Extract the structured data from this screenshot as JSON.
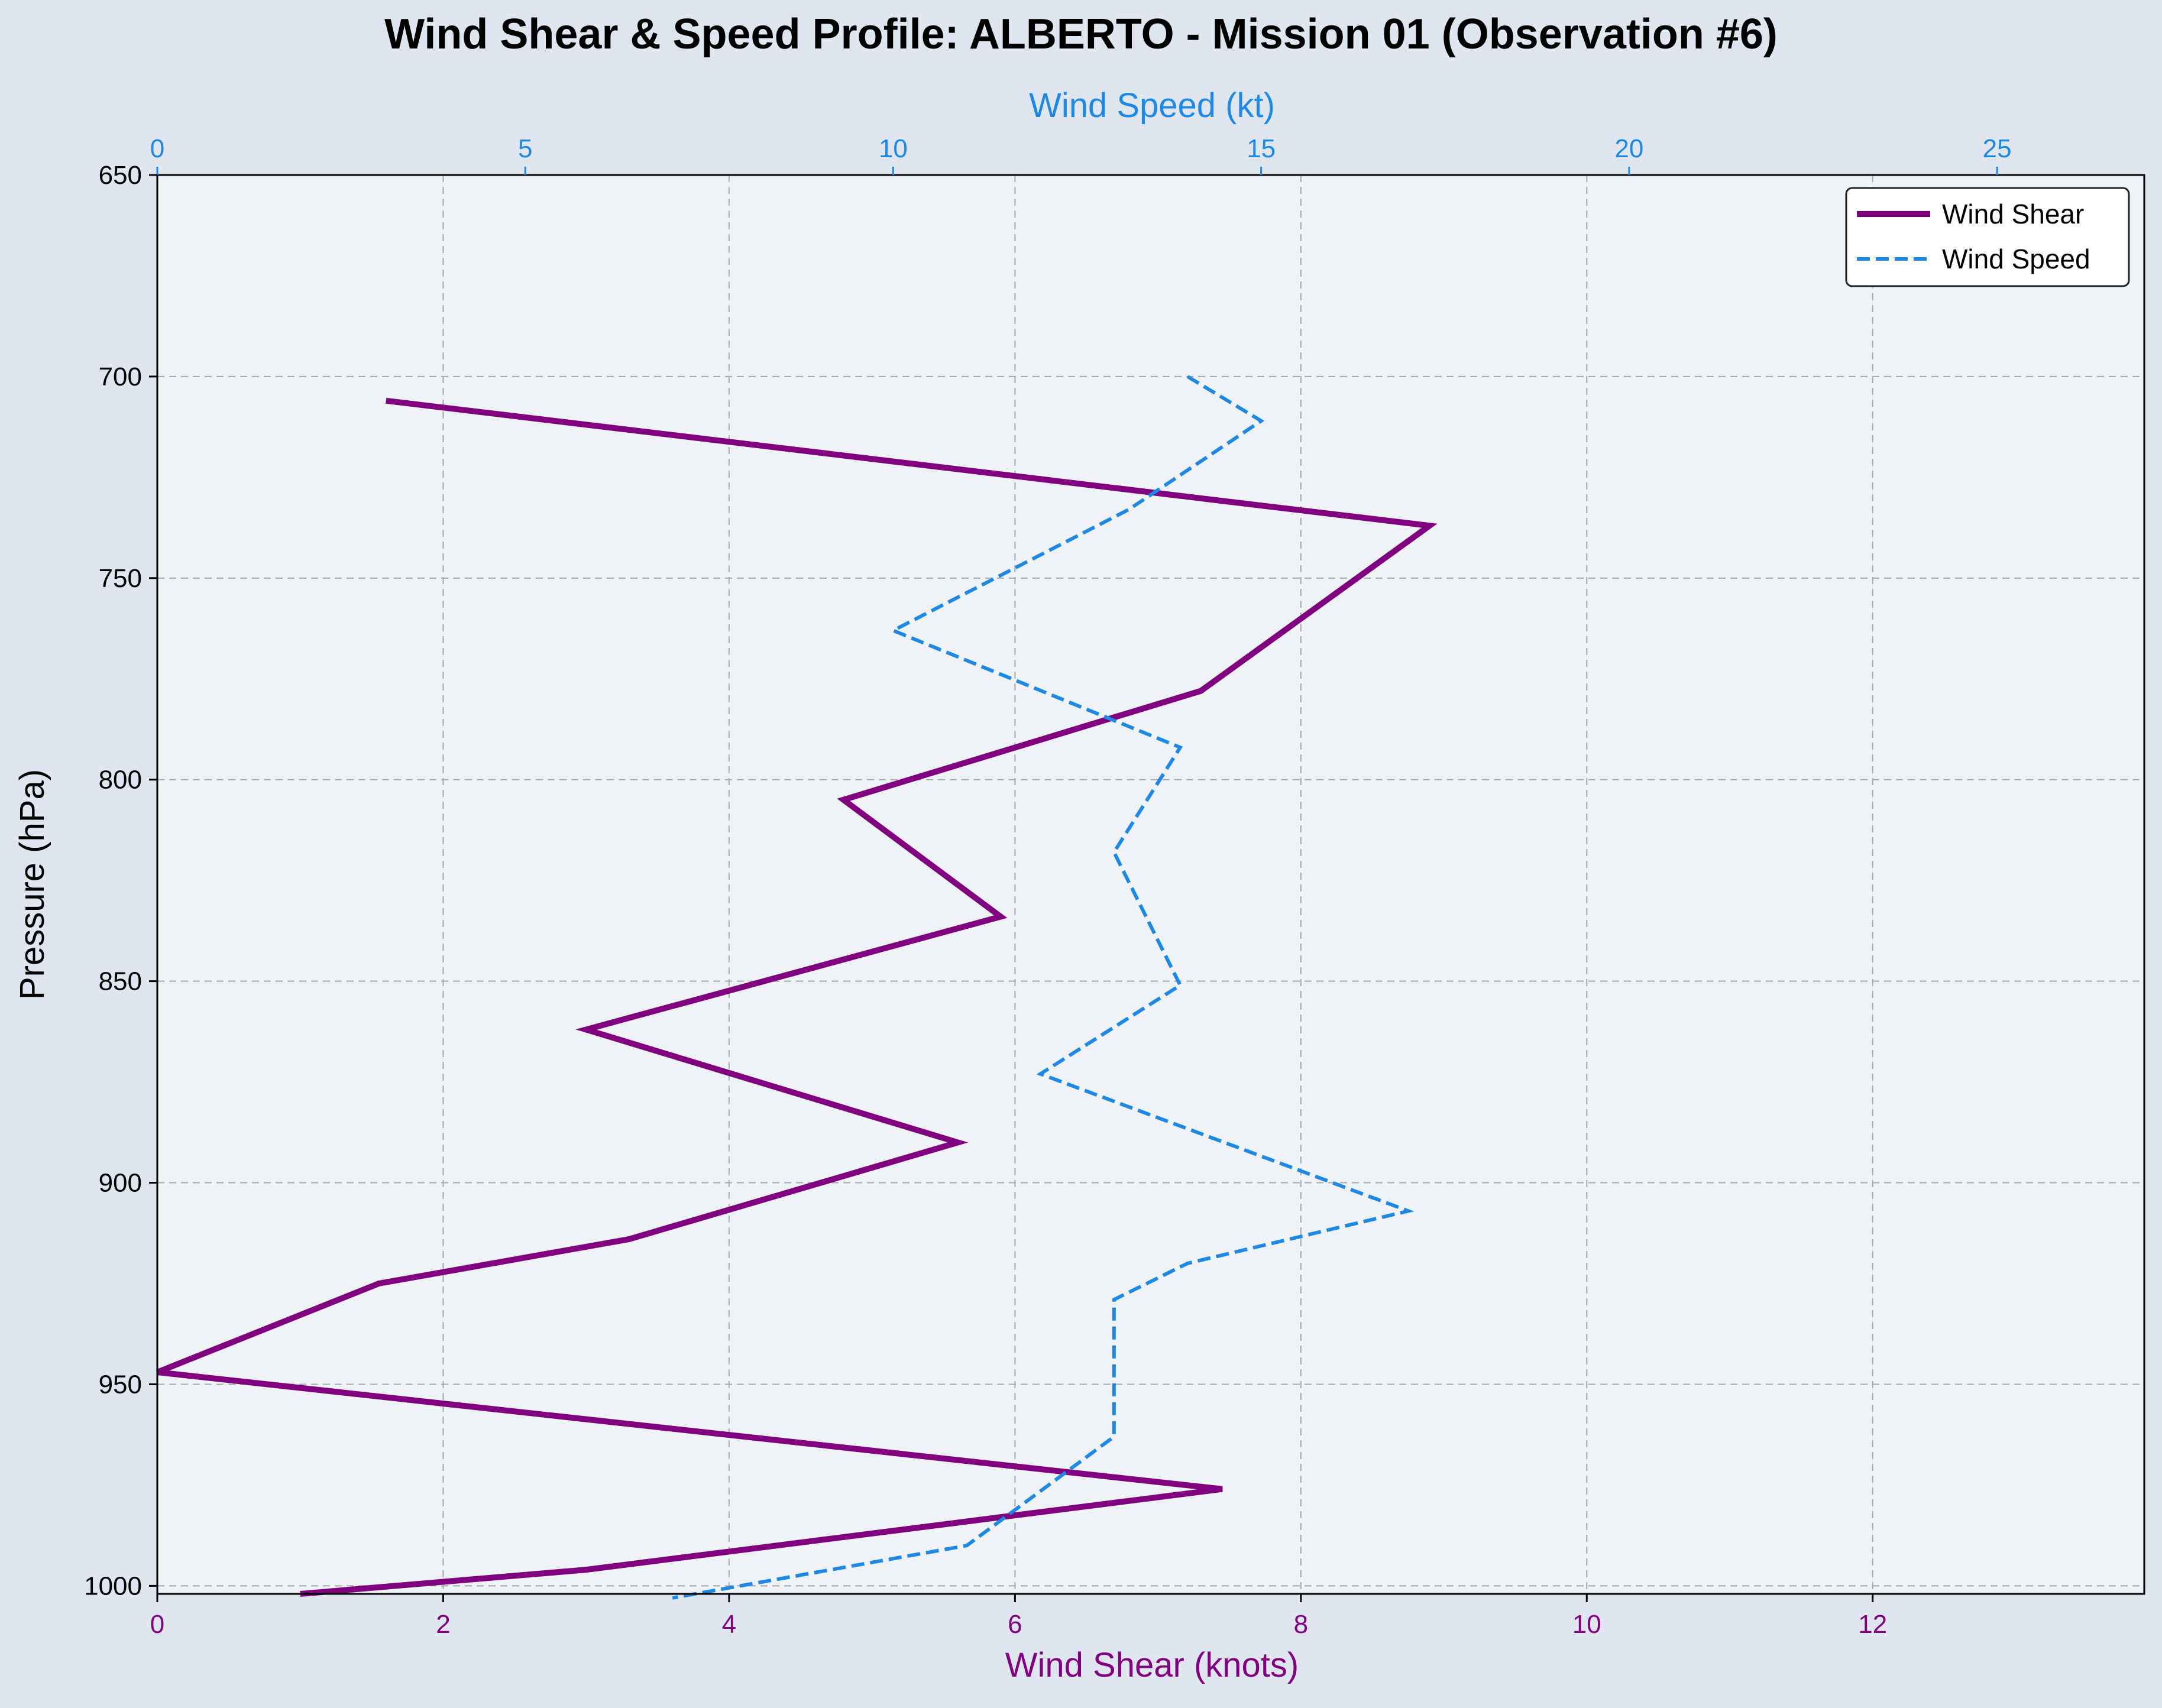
{
  "chart_data": {
    "type": "line",
    "title": "Wind Shear & Speed Profile: ALBERTO - Mission 01 (Observation #6)",
    "ylabel": "Pressure (hPa)",
    "ylim": [
      1002,
      650
    ],
    "y_inverted": true,
    "yticks": [
      650,
      700,
      750,
      800,
      850,
      900,
      950,
      1000
    ],
    "grid": true,
    "legend_position": "top-right",
    "x_axes": {
      "bottom": {
        "label": "Wind Shear (knots)",
        "range": [
          0,
          13.9
        ],
        "ticks": [
          0,
          2,
          4,
          6,
          8,
          10,
          12
        ],
        "color": "#800080"
      },
      "top": {
        "label": "Wind Speed (kt)",
        "range": [
          0,
          27
        ],
        "ticks": [
          0,
          5,
          10,
          15,
          20,
          25
        ],
        "color": "#1e88e5"
      }
    },
    "series": [
      {
        "name": "Wind Shear",
        "axis": "bottom",
        "color": "#800080",
        "style": "solid",
        "points": [
          {
            "x": 1.6,
            "y": 706
          },
          {
            "x": 8.9,
            "y": 737
          },
          {
            "x": 7.3,
            "y": 778
          },
          {
            "x": 4.8,
            "y": 805
          },
          {
            "x": 5.9,
            "y": 834
          },
          {
            "x": 3.0,
            "y": 862
          },
          {
            "x": 5.6,
            "y": 890
          },
          {
            "x": 3.3,
            "y": 914
          },
          {
            "x": 1.55,
            "y": 925
          },
          {
            "x": 0.0,
            "y": 947
          },
          {
            "x": 7.45,
            "y": 976
          },
          {
            "x": 3.0,
            "y": 996
          },
          {
            "x": 1.0,
            "y": 1002
          }
        ]
      },
      {
        "name": "Wind Speed",
        "axis": "top",
        "color": "#1e88e5",
        "style": "dashed",
        "points": [
          {
            "x": 14.0,
            "y": 700
          },
          {
            "x": 15.0,
            "y": 711
          },
          {
            "x": 13.2,
            "y": 733
          },
          {
            "x": 10.0,
            "y": 763
          },
          {
            "x": 13.9,
            "y": 792
          },
          {
            "x": 13.0,
            "y": 818
          },
          {
            "x": 13.9,
            "y": 851
          },
          {
            "x": 12.0,
            "y": 873
          },
          {
            "x": 17.0,
            "y": 907
          },
          {
            "x": 14.0,
            "y": 920
          },
          {
            "x": 13.0,
            "y": 929
          },
          {
            "x": 13.0,
            "y": 963
          },
          {
            "x": 11.0,
            "y": 990
          },
          {
            "x": 7.0,
            "y": 1003
          }
        ]
      }
    ]
  },
  "colors": {
    "figure_bg": "#e0e6ef",
    "plot_bg": "#eff2f7",
    "grid": "#a7a9ae",
    "shear": "#800080",
    "speed": "#1e88e5"
  }
}
